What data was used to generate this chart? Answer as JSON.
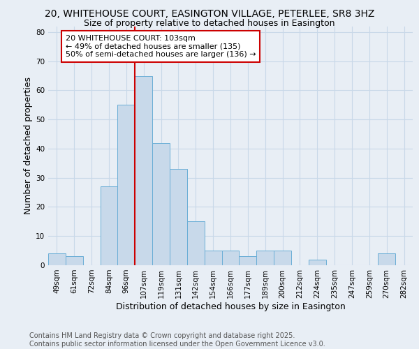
{
  "title_line1": "20, WHITEHOUSE COURT, EASINGTON VILLAGE, PETERLEE, SR8 3HZ",
  "title_line2": "Size of property relative to detached houses in Easington",
  "xlabel": "Distribution of detached houses by size in Easington",
  "ylabel": "Number of detached properties",
  "categories": [
    "49sqm",
    "61sqm",
    "72sqm",
    "84sqm",
    "96sqm",
    "107sqm",
    "119sqm",
    "131sqm",
    "142sqm",
    "154sqm",
    "166sqm",
    "177sqm",
    "189sqm",
    "200sqm",
    "212sqm",
    "224sqm",
    "235sqm",
    "247sqm",
    "259sqm",
    "270sqm",
    "282sqm"
  ],
  "values": [
    4,
    3,
    0,
    27,
    55,
    65,
    42,
    33,
    15,
    5,
    5,
    3,
    5,
    5,
    0,
    2,
    0,
    0,
    0,
    4,
    0
  ],
  "bar_color": "#c8d9ea",
  "bar_edge_color": "#6aaed6",
  "vline_x_index": 5,
  "vline_color": "#cc0000",
  "annotation_text": "20 WHITEHOUSE COURT: 103sqm\n← 49% of detached houses are smaller (135)\n50% of semi-detached houses are larger (136) →",
  "annotation_box_color": "white",
  "annotation_box_edge_color": "#cc0000",
  "ylim": [
    0,
    82
  ],
  "yticks": [
    0,
    10,
    20,
    30,
    40,
    50,
    60,
    70,
    80
  ],
  "grid_color": "#c8d8e8",
  "background_color": "#e8eef5",
  "plot_bg_color": "#e8eef5",
  "footer_text": "Contains HM Land Registry data © Crown copyright and database right 2025.\nContains public sector information licensed under the Open Government Licence v3.0.",
  "title_fontsize": 10,
  "subtitle_fontsize": 9,
  "axis_label_fontsize": 9,
  "tick_fontsize": 7.5,
  "annotation_fontsize": 8,
  "footer_fontsize": 7
}
